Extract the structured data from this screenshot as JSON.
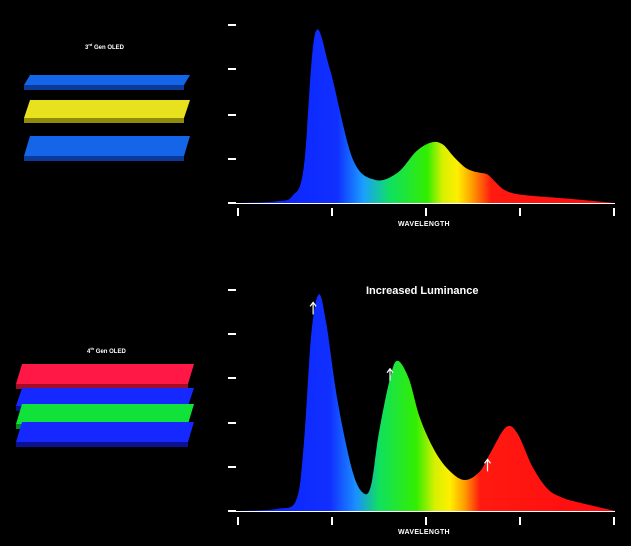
{
  "panels": [
    {
      "label_main": "3",
      "label_sup": "rd",
      "label_rest": " Gen OLED",
      "layers": [
        {
          "color": "#1565e8",
          "edge": "#0b3a9a",
          "name": "blue-layer-top"
        },
        {
          "color": "#e8e21e",
          "edge": "#8f8a0a",
          "name": "yellow-layer"
        },
        {
          "color": "#1565e8",
          "edge": "#0b3a9a",
          "name": "blue-layer-bottom"
        }
      ],
      "xlabel": "WAVELENGTH"
    },
    {
      "label_main": "4",
      "label_sup": "th",
      "label_rest": " Gen OLED",
      "layers": [
        {
          "color": "#ff1745",
          "edge": "#a40d28",
          "name": "red-layer"
        },
        {
          "color": "#1428ff",
          "edge": "#0a128f",
          "name": "blue-layer-1"
        },
        {
          "color": "#11e23a",
          "edge": "#088a22",
          "name": "green-layer"
        },
        {
          "color": "#1428ff",
          "edge": "#0a128f",
          "name": "blue-layer-2"
        }
      ],
      "xlabel": "WAVELENGTH",
      "annotation": "Increased Luminance"
    }
  ],
  "chart_data": [
    {
      "type": "area",
      "title": "",
      "xlabel": "WAVELENGTH",
      "ylabel": "",
      "xlim": [
        0,
        100
      ],
      "ylim": [
        0,
        100
      ],
      "x": [
        0,
        10,
        14,
        17,
        20,
        24,
        30,
        36,
        42,
        47,
        51,
        54,
        57,
        60,
        62,
        64,
        66,
        68,
        70,
        72,
        74,
        78,
        84,
        90,
        95,
        100
      ],
      "values": [
        0,
        1,
        4,
        20,
        95,
        75,
        25,
        13,
        17,
        29,
        34,
        33,
        26,
        20,
        18,
        17,
        16,
        12,
        8,
        6,
        5,
        4,
        3,
        2,
        1,
        0
      ],
      "x_ticks": 5,
      "y_ticks": 5
    },
    {
      "type": "area",
      "title": "",
      "xlabel": "WAVELENGTH",
      "ylabel": "",
      "xlim": [
        0,
        100
      ],
      "ylim": [
        0,
        100
      ],
      "x": [
        0,
        10,
        15,
        17,
        19,
        21,
        23,
        26,
        30,
        33,
        35,
        37,
        40,
        42,
        45,
        48,
        52,
        56,
        60,
        64,
        67,
        71,
        74,
        78,
        82,
        86,
        90,
        95,
        100
      ],
      "values": [
        0,
        1,
        5,
        30,
        80,
        98,
        85,
        50,
        18,
        8,
        12,
        35,
        60,
        68,
        60,
        42,
        27,
        18,
        14,
        18,
        27,
        38,
        35,
        20,
        10,
        6,
        4,
        2,
        0
      ],
      "x_ticks": 5,
      "y_ticks": 6,
      "arrow_at_x": [
        19.5,
        40,
        66
      ]
    }
  ]
}
